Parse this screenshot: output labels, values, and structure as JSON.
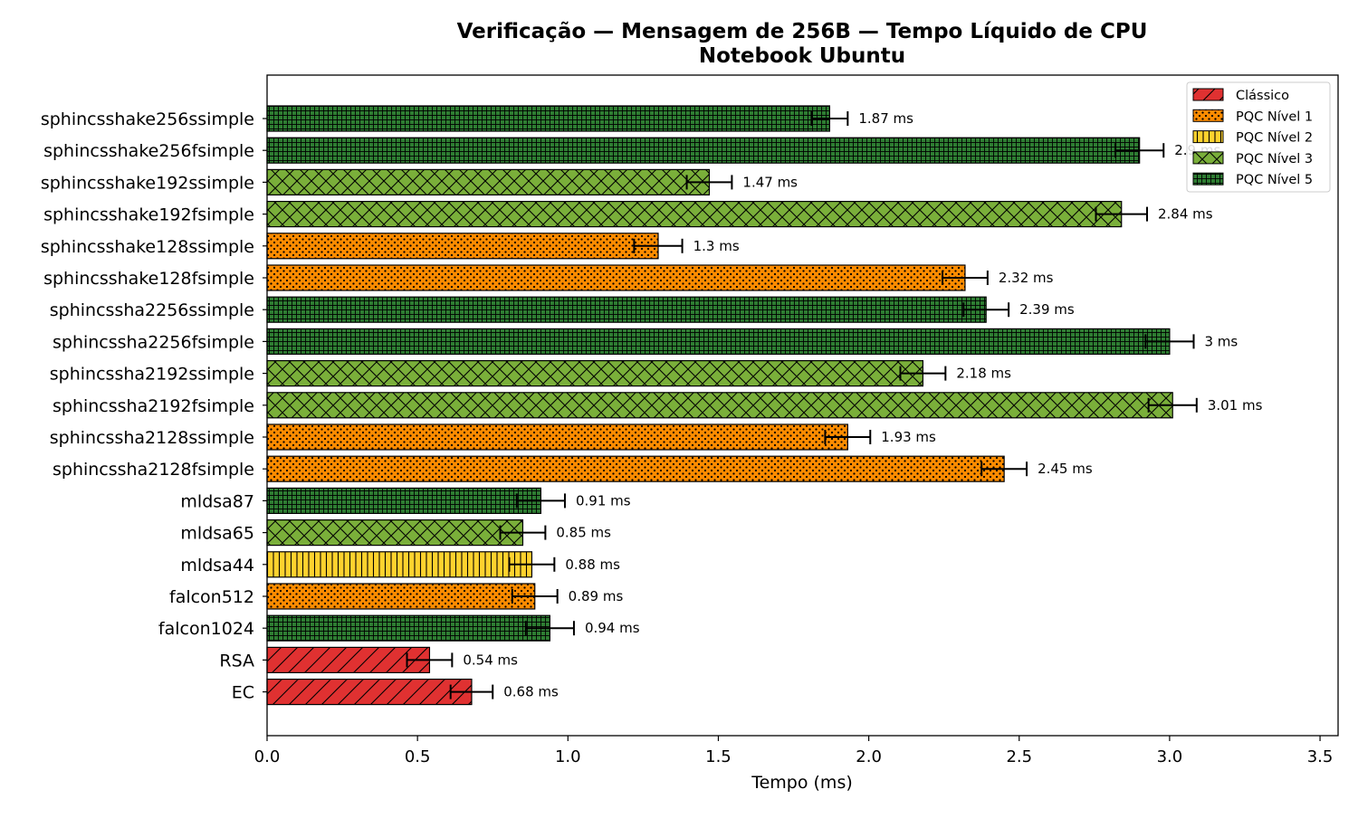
{
  "chart_data": {
    "type": "bar",
    "orientation": "horizontal",
    "title": "Verificação — Mensagem de 256B — Tempo Líquido de CPU",
    "subtitle": "Notebook Ubuntu",
    "xlabel": "Tempo (ms)",
    "ylabel": "",
    "xlim": [
      0,
      3.56
    ],
    "xticks": [
      "0.0",
      "0.5",
      "1.0",
      "1.5",
      "2.0",
      "2.5",
      "3.0",
      "3.5"
    ],
    "grid": false,
    "legend_position": "top-right",
    "legend": [
      {
        "key": "classico",
        "label": "Clássico",
        "color": "#e03131",
        "pattern": "diagonal"
      },
      {
        "key": "n1",
        "label": "PQC Nível 1",
        "color": "#ff8c00",
        "pattern": "dots"
      },
      {
        "key": "n2",
        "label": "PQC Nível 2",
        "color": "#ffd22e",
        "pattern": "vertical"
      },
      {
        "key": "n3",
        "label": "PQC Nível 3",
        "color": "#7aaf3a",
        "pattern": "crosshatch"
      },
      {
        "key": "n5",
        "label": "PQC Nível 5",
        "color": "#2e7d32",
        "pattern": "grid"
      }
    ],
    "bars": [
      {
        "label": "sphincsshake256ssimple",
        "value": 1.87,
        "error": 0.06,
        "group": "n5",
        "annotation": "1.87 ms"
      },
      {
        "label": "sphincsshake256fsimple",
        "value": 2.9,
        "error": 0.08,
        "group": "n5",
        "annotation": "2.9 ms"
      },
      {
        "label": "sphincsshake192ssimple",
        "value": 1.47,
        "error": 0.075,
        "group": "n3",
        "annotation": "1.47 ms"
      },
      {
        "label": "sphincsshake192fsimple",
        "value": 2.84,
        "error": 0.085,
        "group": "n3",
        "annotation": "2.84 ms"
      },
      {
        "label": "sphincsshake128ssimple",
        "value": 1.3,
        "error": 0.08,
        "group": "n1",
        "annotation": "1.3 ms"
      },
      {
        "label": "sphincsshake128fsimple",
        "value": 2.32,
        "error": 0.075,
        "group": "n1",
        "annotation": "2.32 ms"
      },
      {
        "label": "sphincssha2256ssimple",
        "value": 2.39,
        "error": 0.075,
        "group": "n5",
        "annotation": "2.39 ms"
      },
      {
        "label": "sphincssha2256fsimple",
        "value": 3.0,
        "error": 0.08,
        "group": "n5",
        "annotation": "3 ms"
      },
      {
        "label": "sphincssha2192ssimple",
        "value": 2.18,
        "error": 0.075,
        "group": "n3",
        "annotation": "2.18 ms"
      },
      {
        "label": "sphincssha2192fsimple",
        "value": 3.01,
        "error": 0.08,
        "group": "n3",
        "annotation": "3.01 ms"
      },
      {
        "label": "sphincssha2128ssimple",
        "value": 1.93,
        "error": 0.075,
        "group": "n1",
        "annotation": "1.93 ms"
      },
      {
        "label": "sphincssha2128fsimple",
        "value": 2.45,
        "error": 0.075,
        "group": "n1",
        "annotation": "2.45 ms"
      },
      {
        "label": "mldsa87",
        "value": 0.91,
        "error": 0.08,
        "group": "n5",
        "annotation": "0.91 ms"
      },
      {
        "label": "mldsa65",
        "value": 0.85,
        "error": 0.075,
        "group": "n3",
        "annotation": "0.85 ms"
      },
      {
        "label": "mldsa44",
        "value": 0.88,
        "error": 0.075,
        "group": "n2",
        "annotation": "0.88 ms"
      },
      {
        "label": "falcon512",
        "value": 0.89,
        "error": 0.075,
        "group": "n1",
        "annotation": "0.89 ms"
      },
      {
        "label": "falcon1024",
        "value": 0.94,
        "error": 0.08,
        "group": "n5",
        "annotation": "0.94 ms"
      },
      {
        "label": "RSA",
        "value": 0.54,
        "error": 0.075,
        "group": "classico",
        "annotation": "0.54 ms"
      },
      {
        "label": "EC",
        "value": 0.68,
        "error": 0.07,
        "group": "classico",
        "annotation": "0.68 ms"
      }
    ]
  }
}
